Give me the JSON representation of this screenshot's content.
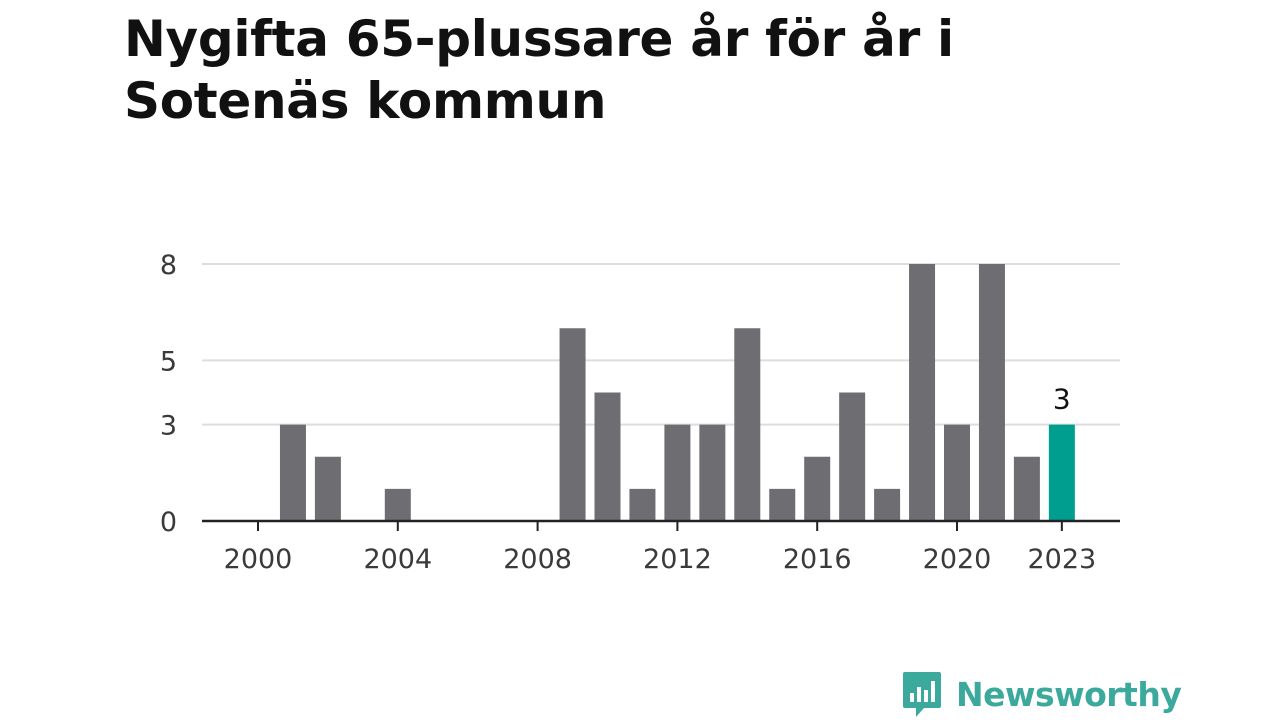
{
  "title": "Nygifta 65-plussare år för år i Sotenäs kommun",
  "brand": {
    "name": "Newsworthy",
    "icon": "newsworthy-logo-icon",
    "color": "#3ba99c"
  },
  "colors": {
    "bar": "#6e6d72",
    "highlight": "#009e8e",
    "grid": "#dddddd",
    "axis": "#222222"
  },
  "chart_data": {
    "type": "bar",
    "title": "Nygifta 65-plussare år för år i Sotenäs kommun",
    "xlabel": "",
    "ylabel": "",
    "x": [
      2000,
      2001,
      2002,
      2003,
      2004,
      2005,
      2006,
      2007,
      2008,
      2009,
      2010,
      2011,
      2012,
      2013,
      2014,
      2015,
      2016,
      2017,
      2018,
      2019,
      2020,
      2021,
      2022,
      2023
    ],
    "values": [
      0,
      3,
      2,
      0,
      1,
      0,
      0,
      0,
      0,
      6,
      4,
      1,
      3,
      3,
      6,
      1,
      2,
      4,
      1,
      8,
      3,
      8,
      2,
      3
    ],
    "ylim": [
      0,
      8
    ],
    "y_ticks": [
      0,
      3,
      5,
      8
    ],
    "x_ticks": [
      "2000",
      "2004",
      "2008",
      "2012",
      "2016",
      "2020",
      "2023"
    ],
    "highlight": {
      "x": 2023,
      "label": "3"
    },
    "grid": true,
    "legend": "none"
  }
}
